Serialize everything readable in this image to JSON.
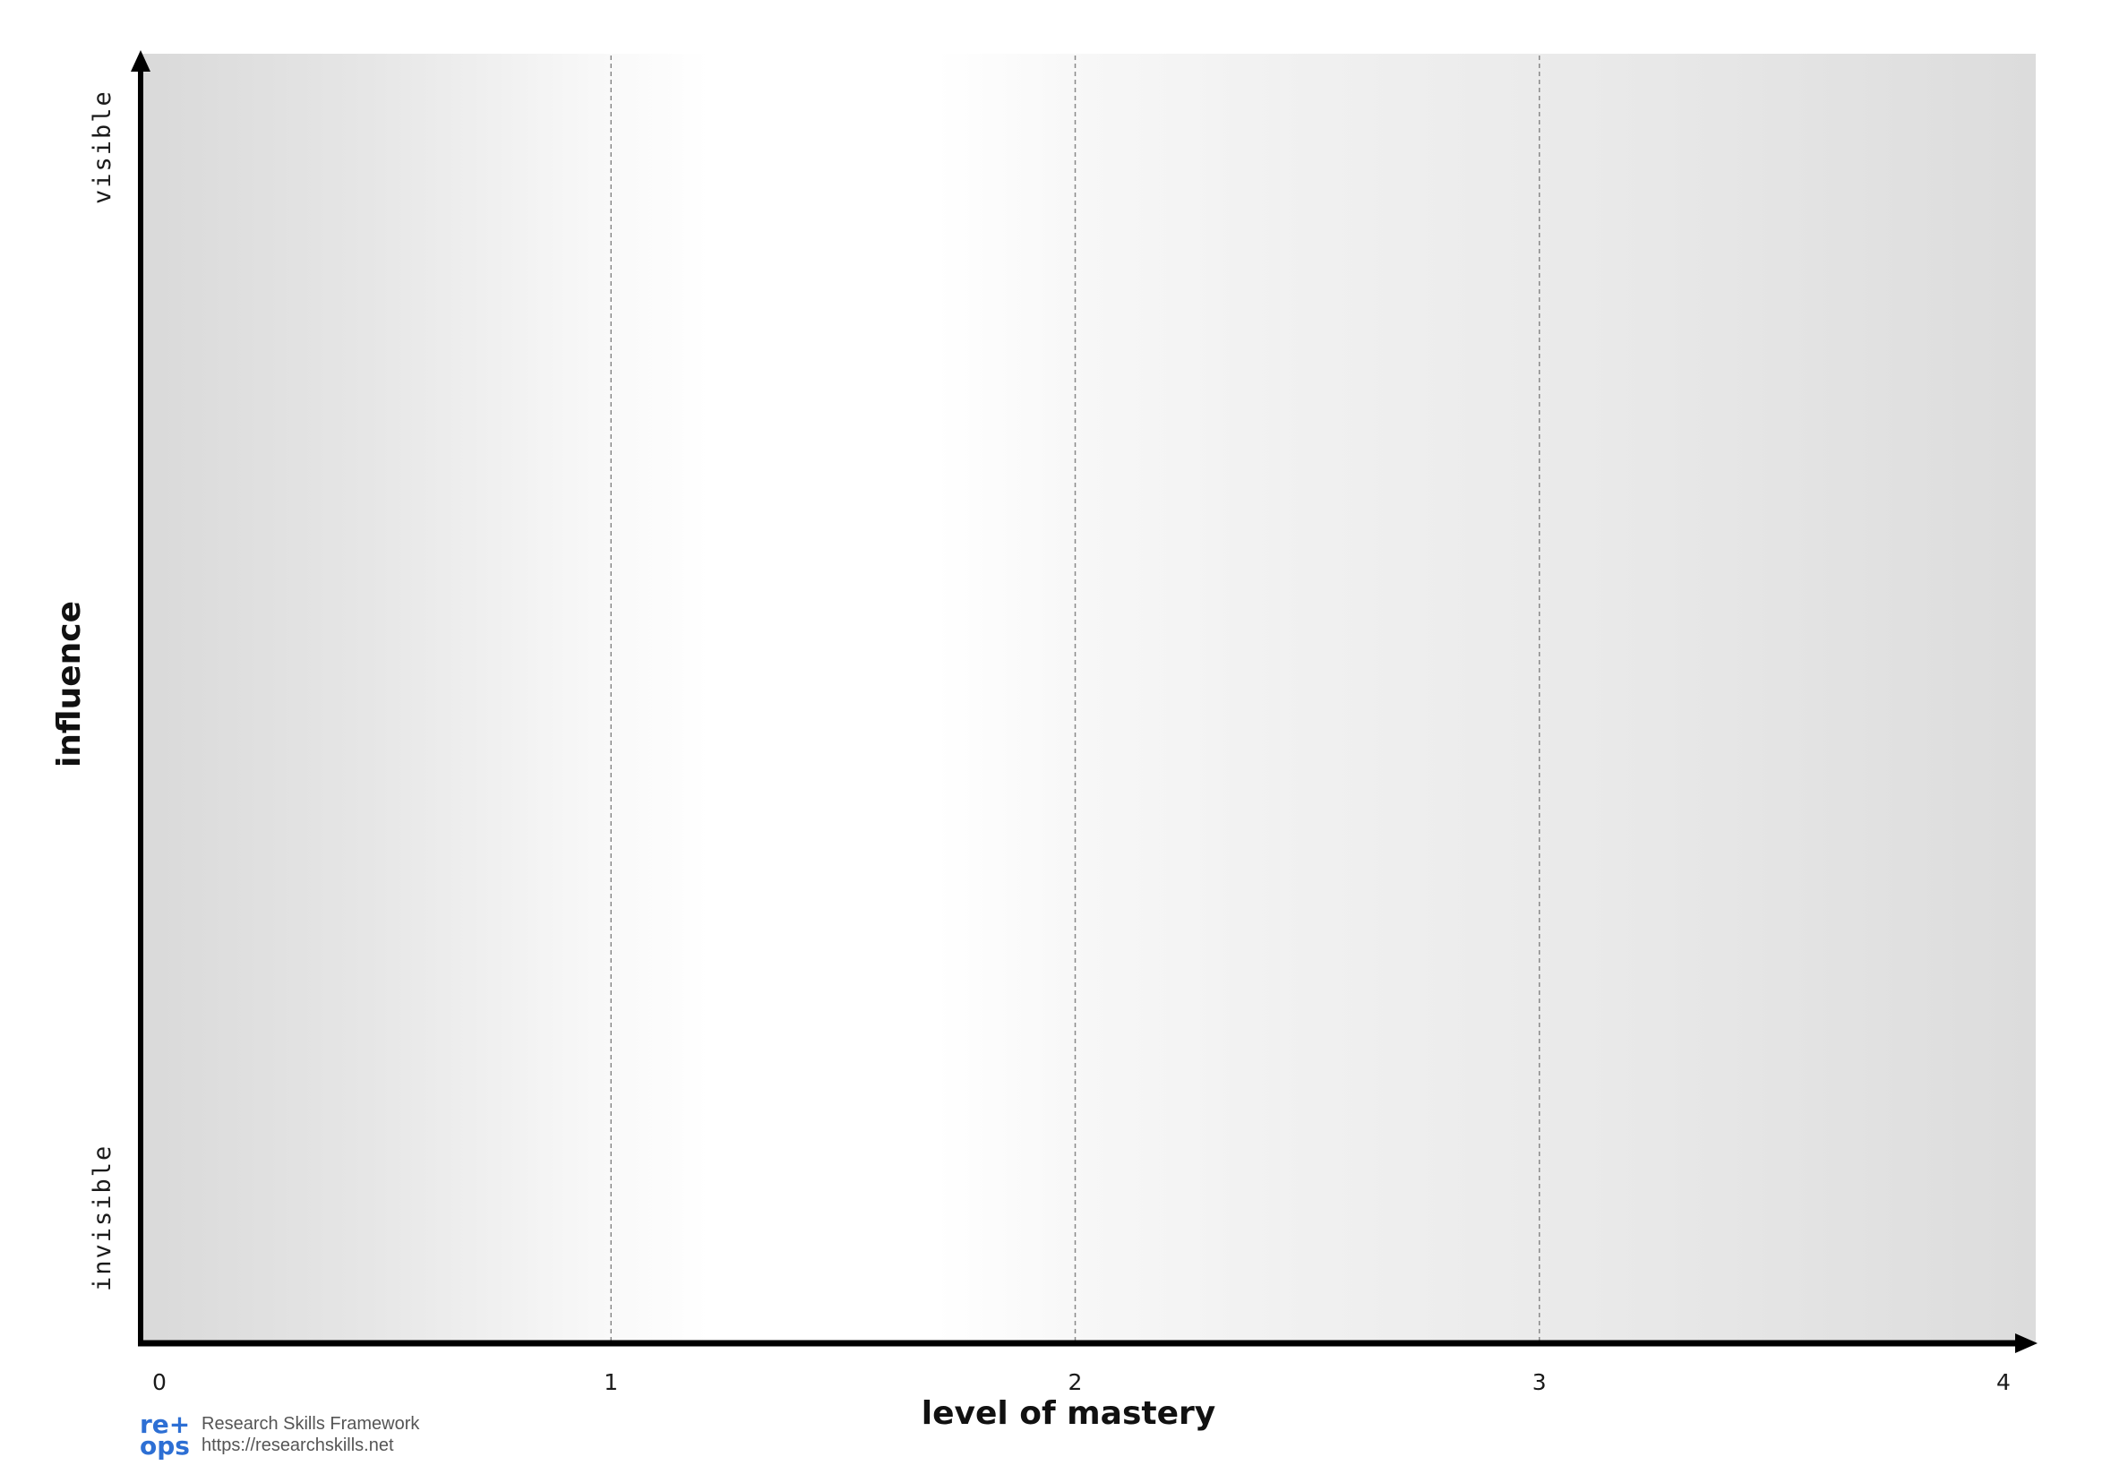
{
  "diagram": {
    "x_axis": {
      "title": "level of mastery",
      "ticks": [
        "0",
        "1",
        "2",
        "3",
        "4"
      ],
      "range": [
        0,
        4
      ]
    },
    "y_axis": {
      "title": "influence",
      "top_label": "visible",
      "bottom_label": "invisible"
    },
    "vertical_gridlines_at": [
      1,
      2,
      3
    ],
    "gridline_style": "dashed",
    "background": "horizontal grey gradient, white near level 1-2, darker grey toward 0 and 4",
    "colors": {
      "axis": "#000000",
      "gridline": "#8a8a8a",
      "shade_dark": "#d8d8d8",
      "shade_light": "#ffffff"
    }
  },
  "footer": {
    "logo_line1": "re+",
    "logo_line2": "ops",
    "title": "Research Skills Framework",
    "url": "https://researchskills.net",
    "logo_color": "#2d6fd4"
  }
}
